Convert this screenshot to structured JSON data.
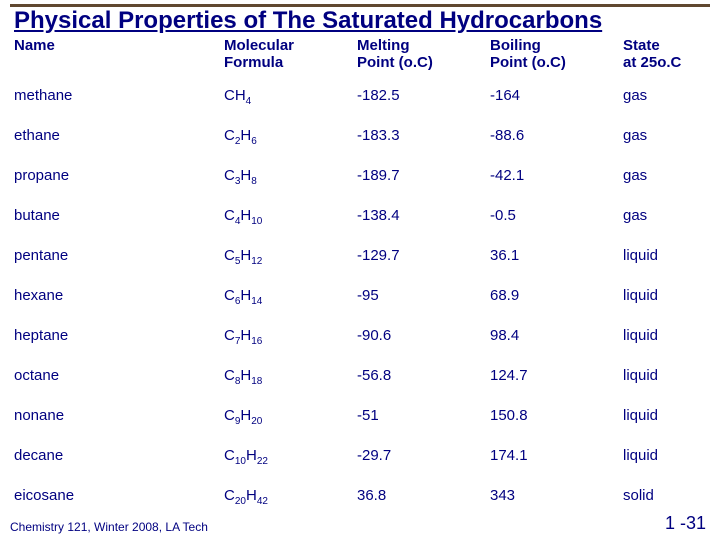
{
  "title": "Physical Properties of The Saturated Hydrocarbons",
  "footer_left": "Chemistry 121, Winter 2008, LA Tech",
  "footer_right": "1 -31",
  "table": {
    "columns": [
      {
        "l1": "Name",
        "l2": ""
      },
      {
        "l1": "Molecular",
        "l2": "Formula"
      },
      {
        "l1": "Melting",
        "l2": "Point (o.C)"
      },
      {
        "l1": "Boiling",
        "l2": "Point (o.C)"
      },
      {
        "l1": "State",
        "l2": "at 25o.C"
      }
    ],
    "col_widths_pct": [
      30,
      19,
      19,
      19,
      13
    ],
    "rows": [
      {
        "name": "methane",
        "formula": {
          "prefix": "CH",
          "sub1": "4",
          "mid": "",
          "sub2": ""
        },
        "melting": "-182.5",
        "boiling": "-164",
        "state": "gas"
      },
      {
        "name": "ethane",
        "formula": {
          "prefix": "C",
          "sub1": "2",
          "mid": "H",
          "sub2": "6"
        },
        "melting": "-183.3",
        "boiling": "-88.6",
        "state": "gas"
      },
      {
        "name": "propane",
        "formula": {
          "prefix": "C",
          "sub1": "3",
          "mid": "H",
          "sub2": "8"
        },
        "melting": "-189.7",
        "boiling": "-42.1",
        "state": "gas"
      },
      {
        "name": "butane",
        "formula": {
          "prefix": "C",
          "sub1": "4",
          "mid": "H",
          "sub2": "10"
        },
        "melting": "-138.4",
        "boiling": "-0.5",
        "state": "gas"
      },
      {
        "name": "pentane",
        "formula": {
          "prefix": "C",
          "sub1": "5",
          "mid": "H",
          "sub2": "12"
        },
        "melting": "-129.7",
        "boiling": "36.1",
        "state": "liquid"
      },
      {
        "name": "hexane",
        "formula": {
          "prefix": "C",
          "sub1": "6",
          "mid": "H",
          "sub2": "14"
        },
        "melting": "-95",
        "boiling": "68.9",
        "state": "liquid"
      },
      {
        "name": "heptane",
        "formula": {
          "prefix": "C",
          "sub1": "7",
          "mid": "H",
          "sub2": "16"
        },
        "melting": "-90.6",
        "boiling": "98.4",
        "state": "liquid"
      },
      {
        "name": "octane",
        "formula": {
          "prefix": "C",
          "sub1": "8",
          "mid": "H",
          "sub2": "18"
        },
        "melting": "-56.8",
        "boiling": "124.7",
        "state": "liquid"
      },
      {
        "name": "nonane",
        "formula": {
          "prefix": "C",
          "sub1": "9",
          "mid": "H",
          "sub2": "20"
        },
        "melting": "-51",
        "boiling": "150.8",
        "state": "liquid"
      },
      {
        "name": "decane",
        "formula": {
          "prefix": "C",
          "sub1": "10",
          "mid": "H",
          "sub2": "22"
        },
        "melting": "-29.7",
        "boiling": "174.1",
        "state": "liquid"
      },
      {
        "name": "eicosane",
        "formula": {
          "prefix": "C",
          "sub1": "20",
          "mid": "H",
          "sub2": "42"
        },
        "melting": "36.8",
        "boiling": "343",
        "state": "solid"
      }
    ]
  },
  "colors": {
    "text": "#000080",
    "rule": "#604830",
    "background": "#ffffff"
  },
  "fonts": {
    "title_size_pt": 18,
    "header_size_pt": 11,
    "cell_size_pt": 11,
    "footer_left_pt": 9,
    "footer_right_pt": 14
  }
}
